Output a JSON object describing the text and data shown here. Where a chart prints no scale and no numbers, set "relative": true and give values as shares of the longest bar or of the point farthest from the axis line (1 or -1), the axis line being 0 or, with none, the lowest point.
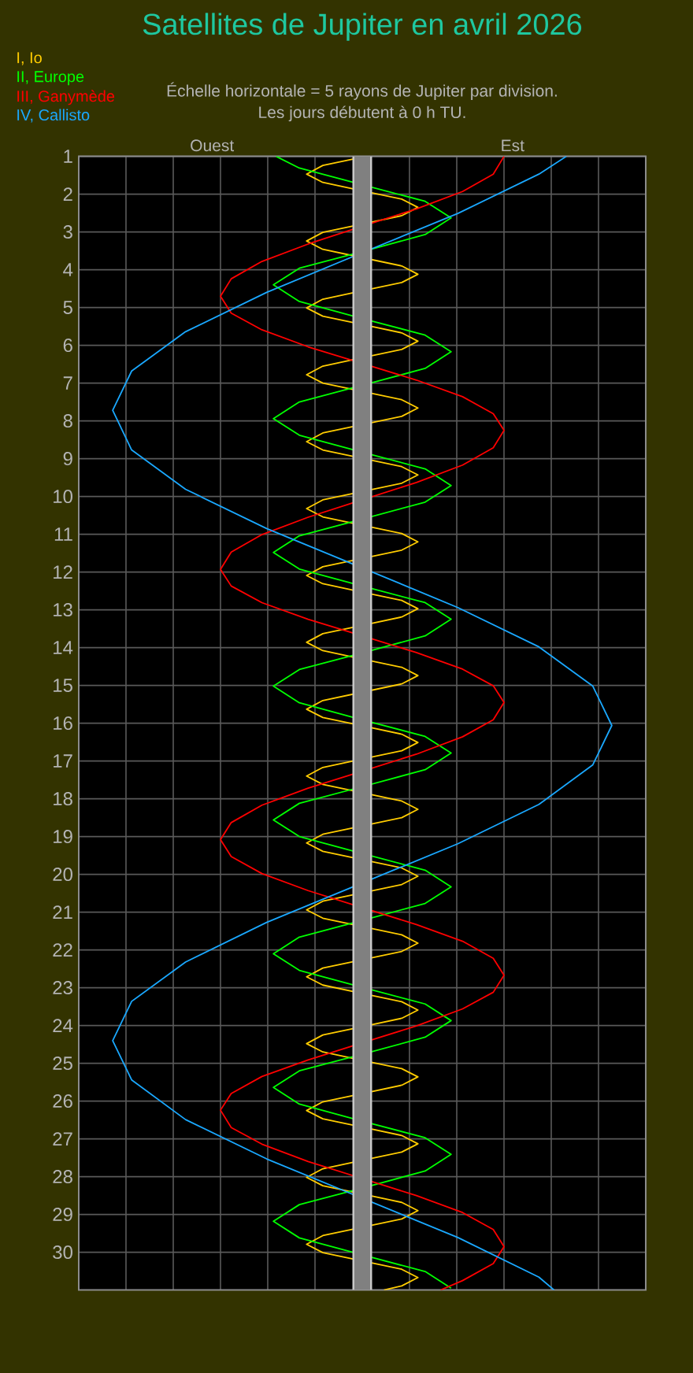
{
  "chart_data": {
    "type": "line",
    "title": "Satellites de Jupiter en avril 2026",
    "subtitle": "Échelle horizontale = 5 rayons de Jupiter par division.",
    "annotations": [
      "Les jours débutent à 0 h TU.",
      "Ouest",
      "Est"
    ],
    "orientation": "horizontal",
    "relative": true,
    "ylim": [
      31,
      1
    ],
    "yticks": [
      1,
      2,
      3,
      4,
      5,
      6,
      7,
      8,
      9,
      10,
      11,
      12,
      13,
      14,
      15,
      16,
      17,
      18,
      19,
      20,
      21,
      22,
      23,
      24,
      25,
      26,
      27,
      28,
      29,
      30
    ],
    "grid": true,
    "tick_labels": "y",
    "ref_lines": [
      {
        "axis": "x",
        "value": 0,
        "color": "#808080"
      }
    ],
    "series": [
      {
        "name": "I, Io",
        "color": "#ffcc00",
        "x": [
          1.02,
          1.24,
          1.47,
          1.69,
          1.91,
          2.13,
          2.35,
          2.57,
          2.79,
          3.01,
          3.24,
          3.46,
          3.68,
          3.9,
          4.12,
          4.34,
          4.56,
          4.78,
          5.01,
          5.23,
          5.45,
          5.67,
          5.89,
          6.11,
          6.33,
          6.55,
          6.78,
          7,
          7.22,
          7.44,
          7.66,
          7.88,
          8.1,
          8.32,
          8.55,
          8.77,
          8.99,
          9.21,
          9.43,
          9.65,
          9.87,
          10.09,
          10.32,
          10.54,
          10.76,
          10.98,
          11.2,
          11.42,
          11.64,
          11.86,
          12.09,
          12.31,
          12.53,
          12.75,
          12.97,
          13.19,
          13.41,
          13.63,
          13.86,
          14.08,
          14.3,
          14.52,
          14.74,
          14.96,
          15.18,
          15.4,
          15.63,
          15.85,
          16.07,
          16.29,
          16.51,
          16.73,
          16.95,
          17.17,
          17.4,
          17.62,
          17.84,
          18.06,
          18.28,
          18.5,
          18.72,
          18.94,
          19.17,
          19.39,
          19.61,
          19.83,
          20.05,
          20.27,
          20.49,
          20.71,
          20.94,
          21.16,
          21.38,
          21.6,
          21.82,
          22.04,
          22.26,
          22.48,
          22.71,
          22.93,
          23.15,
          23.37,
          23.59,
          23.81,
          24.03,
          24.25,
          24.48,
          24.7,
          24.92,
          25.14,
          25.36,
          25.58,
          25.8,
          26.02,
          26.25,
          26.47,
          26.69,
          26.91,
          27.13,
          27.35,
          27.57,
          27.79,
          28.02,
          28.24,
          28.46,
          28.68,
          28.9,
          29.12,
          29.34,
          29.56,
          29.79,
          30.01,
          30.23,
          30.45,
          30.67,
          30.89,
          31
        ],
        "values": [
          0,
          -0.158,
          -0.223,
          -0.158,
          0,
          0.158,
          0.223,
          0.158,
          0,
          -0.158,
          -0.223,
          -0.158,
          0,
          0.158,
          0.223,
          0.158,
          0,
          -0.158,
          -0.223,
          -0.158,
          0,
          0.158,
          0.223,
          0.158,
          0,
          -0.158,
          -0.223,
          -0.158,
          0,
          0.158,
          0.223,
          0.158,
          0,
          -0.158,
          -0.223,
          -0.158,
          0,
          0.158,
          0.223,
          0.158,
          0,
          -0.158,
          -0.223,
          -0.158,
          0,
          0.158,
          0.223,
          0.158,
          0,
          -0.158,
          -0.223,
          -0.158,
          0,
          0.158,
          0.223,
          0.158,
          0,
          -0.158,
          -0.223,
          -0.158,
          0,
          0.158,
          0.223,
          0.158,
          0,
          -0.158,
          -0.223,
          -0.158,
          0,
          0.158,
          0.223,
          0.158,
          0,
          -0.158,
          -0.223,
          -0.158,
          0,
          0.158,
          0.223,
          0.158,
          0,
          -0.158,
          -0.223,
          -0.158,
          0,
          0.158,
          0.223,
          0.158,
          0,
          -0.158,
          -0.223,
          -0.158,
          0,
          0.158,
          0.223,
          0.158,
          0,
          -0.158,
          -0.223,
          -0.158,
          0,
          0.158,
          0.223,
          0.158,
          0,
          -0.158,
          -0.223,
          -0.158,
          0,
          0.158,
          0.223,
          0.158,
          0,
          -0.158,
          -0.223,
          -0.158,
          0,
          0.158,
          0.223,
          0.158,
          0,
          -0.158,
          -0.223,
          -0.158,
          0,
          0.158,
          0.223,
          0.158,
          0,
          -0.158,
          -0.223,
          -0.158,
          0,
          0.158,
          0.223,
          0.158,
          0.087
        ]
      },
      {
        "name": "II, Europe",
        "color": "#00ff00",
        "x": [
          1,
          1.31,
          1.75,
          2.19,
          2.63,
          3.07,
          3.52,
          3.96,
          4.4,
          4.84,
          5.29,
          5.73,
          6.17,
          6.61,
          7.06,
          7.5,
          7.94,
          8.38,
          8.83,
          9.27,
          9.71,
          10.15,
          10.6,
          11.04,
          11.48,
          11.92,
          12.37,
          12.81,
          13.25,
          13.69,
          14.14,
          14.58,
          15.02,
          15.46,
          15.91,
          16.35,
          16.79,
          17.23,
          17.68,
          18.12,
          18.56,
          19,
          19.45,
          19.89,
          20.33,
          20.77,
          21.22,
          21.66,
          22.1,
          22.54,
          22.99,
          23.43,
          23.87,
          24.31,
          24.76,
          25.2,
          25.64,
          26.08,
          26.53,
          26.97,
          27.41,
          27.85,
          28.3,
          28.74,
          29.18,
          29.62,
          30.07,
          30.51,
          30.95
        ],
        "values": [
          -0.345,
          -0.252,
          0,
          0.252,
          0.356,
          0.252,
          0,
          -0.252,
          -0.356,
          -0.252,
          0,
          0.252,
          0.356,
          0.252,
          0,
          -0.252,
          -0.356,
          -0.252,
          0,
          0.252,
          0.356,
          0.252,
          0,
          -0.252,
          -0.356,
          -0.252,
          0,
          0.252,
          0.356,
          0.252,
          0,
          -0.252,
          -0.356,
          -0.252,
          0,
          0.252,
          0.356,
          0.252,
          0,
          -0.252,
          -0.356,
          -0.252,
          0,
          0.252,
          0.356,
          0.252,
          0,
          -0.252,
          -0.356,
          -0.252,
          0,
          0.252,
          0.356,
          0.252,
          0,
          -0.252,
          -0.356,
          -0.252,
          0,
          0.252,
          0.356,
          0.252,
          0,
          -0.252,
          -0.356,
          -0.252,
          0,
          0.252,
          0.356
        ]
      },
      {
        "name": "III, Ganymède",
        "color": "#ff0000",
        "x": [
          1,
          1.47,
          1.93,
          2.39,
          2.85,
          3.32,
          3.78,
          4.24,
          4.7,
          5.15,
          5.59,
          6.04,
          6.48,
          6.92,
          7.36,
          7.81,
          8.25,
          8.71,
          9.17,
          9.63,
          10.09,
          10.55,
          11.01,
          11.47,
          11.93,
          12.37,
          12.81,
          13.25,
          13.69,
          14.13,
          14.57,
          15.01,
          15.45,
          15.91,
          16.36,
          16.82,
          17.27,
          17.72,
          18.17,
          18.63,
          19.08,
          19.53,
          19.98,
          20.43,
          20.88,
          21.33,
          21.77,
          22.22,
          22.67,
          23.12,
          23.56,
          24.01,
          24.46,
          24.91,
          25.35,
          25.8,
          26.24,
          26.7,
          27.14,
          27.6,
          28.05,
          28.5,
          28.95,
          29.4,
          29.85,
          30.3,
          30.75,
          31
        ],
        "values": [
          0.568,
          0.525,
          0.402,
          0.217,
          0,
          -0.217,
          -0.402,
          -0.525,
          -0.568,
          -0.525,
          -0.402,
          -0.217,
          0,
          0.217,
          0.402,
          0.525,
          0.568,
          0.525,
          0.402,
          0.217,
          0,
          -0.217,
          -0.402,
          -0.525,
          -0.568,
          -0.525,
          -0.402,
          -0.217,
          0,
          0.217,
          0.402,
          0.525,
          0.568,
          0.525,
          0.402,
          0.217,
          0,
          -0.217,
          -0.402,
          -0.525,
          -0.568,
          -0.525,
          -0.402,
          -0.217,
          0,
          0.217,
          0.402,
          0.525,
          0.568,
          0.525,
          0.402,
          0.217,
          0,
          -0.217,
          -0.402,
          -0.525,
          -0.568,
          -0.525,
          -0.402,
          -0.217,
          0,
          0.217,
          0.402,
          0.525,
          0.568,
          0.525,
          0.402,
          0.314
        ]
      },
      {
        "name": "IV, Callisto",
        "color": "#1aa8ff",
        "x": [
          1,
          1.47,
          2.51,
          3.55,
          4.6,
          5.64,
          6.68,
          7.72,
          8.77,
          9.81,
          10.85,
          11.89,
          12.94,
          13.98,
          15.02,
          16.06,
          17.1,
          18.15,
          19.19,
          20.23,
          21.27,
          22.32,
          23.36,
          24.4,
          25.44,
          26.49,
          27.53,
          28.57,
          29.61,
          30.66,
          31
        ],
        "values": [
          0.818,
          0.708,
          0.383,
          0,
          -0.383,
          -0.708,
          -0.924,
          -1,
          -0.924,
          -0.708,
          -0.383,
          0,
          0.383,
          0.708,
          0.924,
          1,
          0.924,
          0.708,
          0.383,
          0,
          -0.383,
          -0.708,
          -0.924,
          -1,
          -0.924,
          -0.708,
          -0.383,
          0,
          0.383,
          0.708,
          0.769
        ]
      }
    ]
  }
}
